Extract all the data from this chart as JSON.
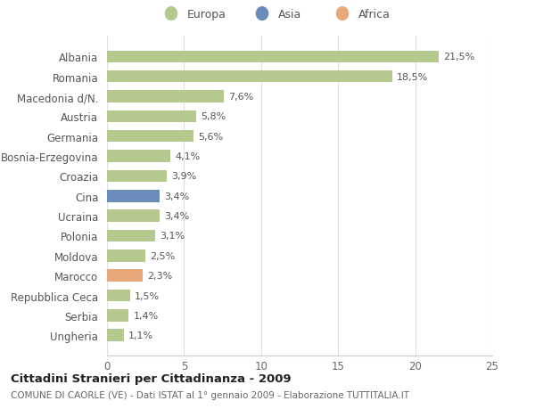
{
  "categories": [
    "Albania",
    "Romania",
    "Macedonia d/N.",
    "Austria",
    "Germania",
    "Bosnia-Erzegovina",
    "Croazia",
    "Cina",
    "Ucraina",
    "Polonia",
    "Moldova",
    "Marocco",
    "Repubblica Ceca",
    "Serbia",
    "Ungheria"
  ],
  "values": [
    21.5,
    18.5,
    7.6,
    5.8,
    5.6,
    4.1,
    3.9,
    3.4,
    3.4,
    3.1,
    2.5,
    2.3,
    1.5,
    1.4,
    1.1
  ],
  "labels": [
    "21,5%",
    "18,5%",
    "7,6%",
    "5,8%",
    "5,6%",
    "4,1%",
    "3,9%",
    "3,4%",
    "3,4%",
    "3,1%",
    "2,5%",
    "2,3%",
    "1,5%",
    "1,4%",
    "1,1%"
  ],
  "continent": [
    "Europa",
    "Europa",
    "Europa",
    "Europa",
    "Europa",
    "Europa",
    "Europa",
    "Asia",
    "Europa",
    "Europa",
    "Europa",
    "Africa",
    "Europa",
    "Europa",
    "Europa"
  ],
  "colors": {
    "Europa": "#b5c98e",
    "Asia": "#6b8cba",
    "Africa": "#e8a87c"
  },
  "title": "Cittadini Stranieri per Cittadinanza - 2009",
  "subtitle": "COMUNE DI CAORLE (VE) - Dati ISTAT al 1° gennaio 2009 - Elaborazione TUTTITALIA.IT",
  "xlim": [
    0,
    25
  ],
  "xticks": [
    0,
    5,
    10,
    15,
    20,
    25
  ],
  "bg_color": "#ffffff",
  "grid_color": "#e0e0e0"
}
